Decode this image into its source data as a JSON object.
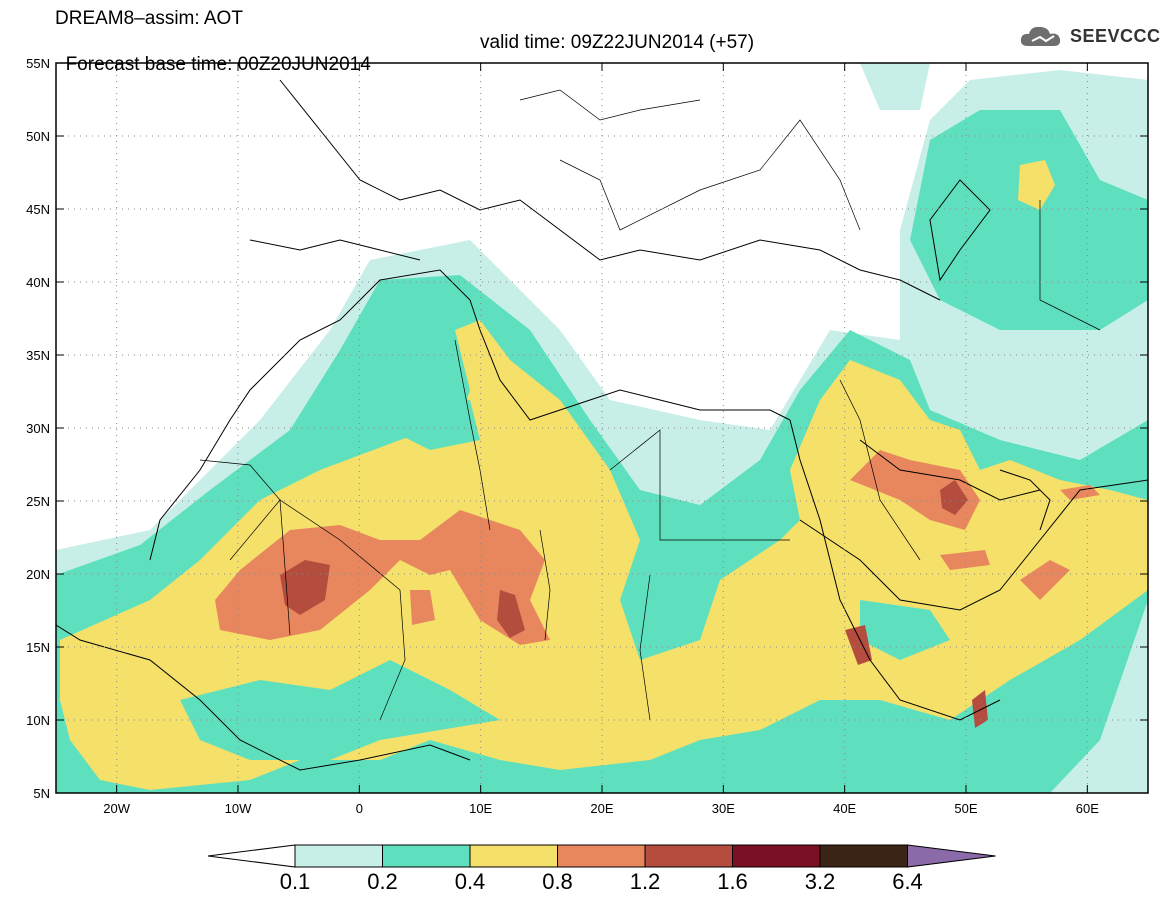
{
  "title": {
    "line1": "DREAM8–assim: AOT",
    "line2_base": "Forecast base time: 00Z20JUN2014",
    "line2_valid": "valid time: 09Z22JUN2014 (+57)"
  },
  "logo": {
    "text": "SEEVCCC",
    "icon": "cloud-icon"
  },
  "map": {
    "lon_range": [
      -25,
      65
    ],
    "lat_range": [
      5,
      55
    ],
    "lon_ticks": [
      {
        "value": -20,
        "label": "20W"
      },
      {
        "value": -10,
        "label": "10W"
      },
      {
        "value": 0,
        "label": "0"
      },
      {
        "value": 10,
        "label": "10E"
      },
      {
        "value": 20,
        "label": "20E"
      },
      {
        "value": 30,
        "label": "30E"
      },
      {
        "value": 40,
        "label": "40E"
      },
      {
        "value": 50,
        "label": "50E"
      },
      {
        "value": 60,
        "label": "60E"
      }
    ],
    "lat_ticks": [
      {
        "value": 55,
        "label": "55N"
      },
      {
        "value": 50,
        "label": "50N"
      },
      {
        "value": 45,
        "label": "45N"
      },
      {
        "value": 40,
        "label": "40N"
      },
      {
        "value": 35,
        "label": "35N"
      },
      {
        "value": 30,
        "label": "30N"
      },
      {
        "value": 25,
        "label": "25N"
      },
      {
        "value": 20,
        "label": "20N"
      },
      {
        "value": 15,
        "label": "15N"
      },
      {
        "value": 10,
        "label": "10N"
      },
      {
        "value": 5,
        "label": "5N"
      }
    ],
    "grid": "dotted"
  },
  "legend": {
    "colors": [
      "#c8eee8",
      "#5ee0bf",
      "#f5e06a",
      "#e8875e",
      "#b54d3f",
      "#7a1025",
      "#3b2416",
      "#8a6aa8"
    ],
    "labels": [
      "0.1",
      "0.2",
      "0.4",
      "0.8",
      "1.2",
      "1.6",
      "3.2",
      "6.4"
    ]
  }
}
